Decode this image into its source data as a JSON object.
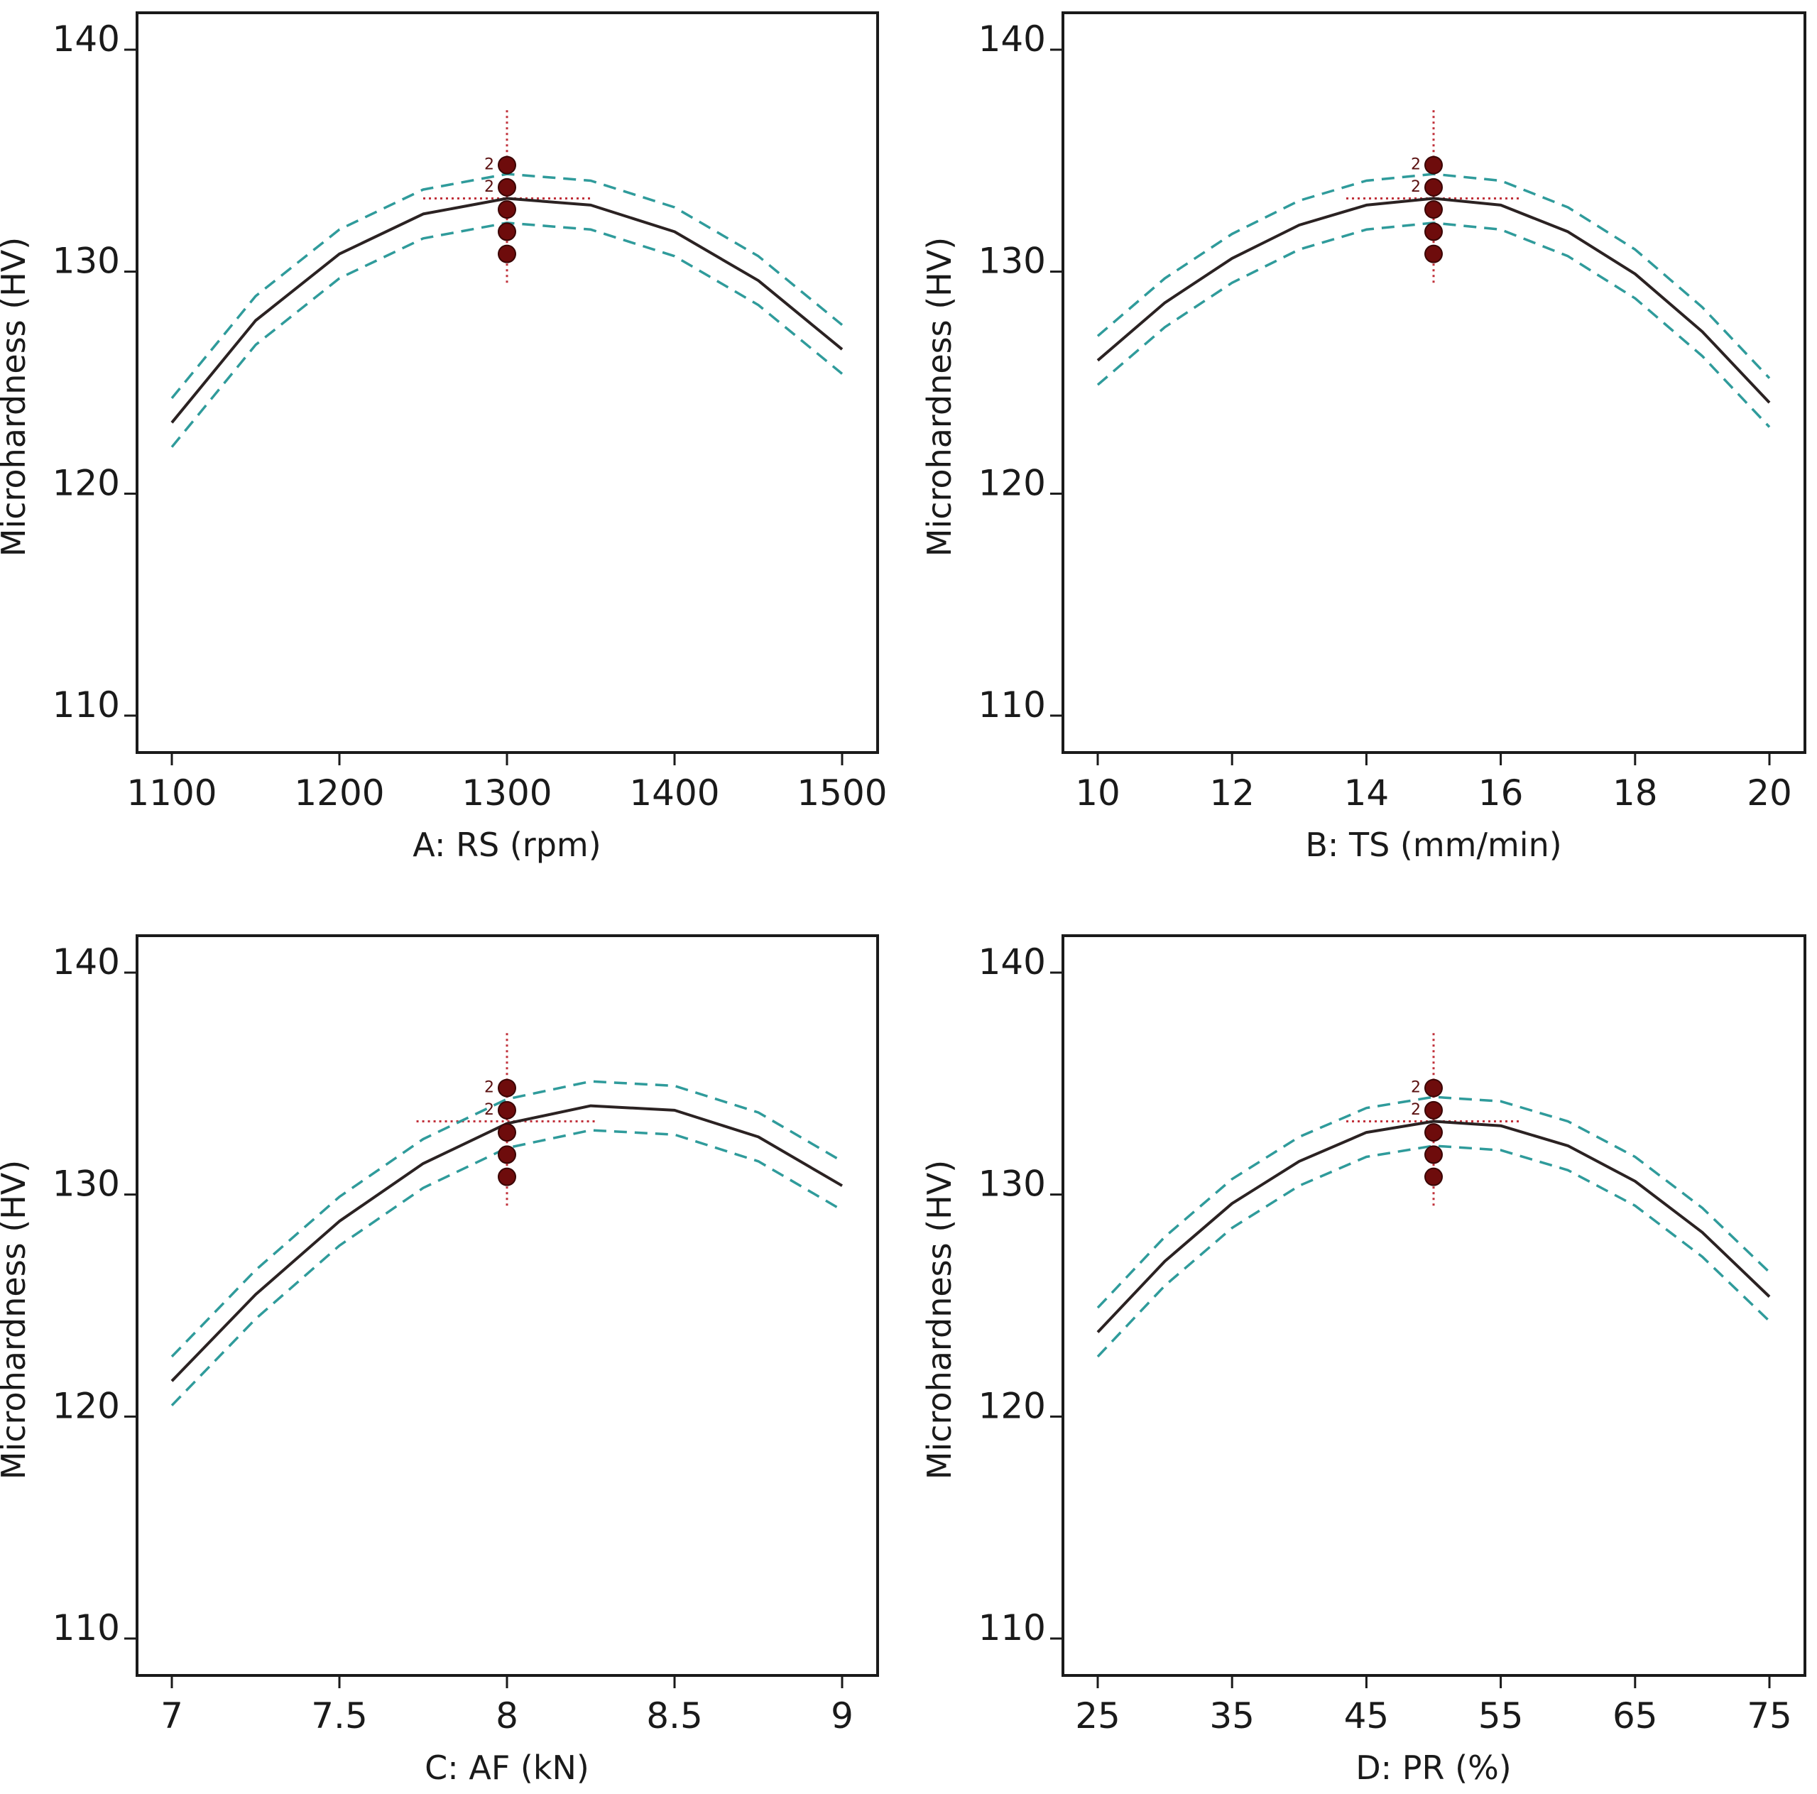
{
  "chart_data": [
    {
      "type": "line",
      "xlabel": "A: RS (rpm)",
      "ylabel": "Microhardness (HV)",
      "xlim": [
        1100,
        1500
      ],
      "ylim": [
        108,
        142
      ],
      "xticks": [
        1100,
        1200,
        1300,
        1400,
        1500
      ],
      "xtick_labels": [
        "1100",
        "1200",
        "1300",
        "1400",
        "1500"
      ],
      "yticks": [
        110,
        120,
        130,
        140
      ],
      "ytick_labels": [
        "110",
        "120",
        "130",
        "140"
      ],
      "series": [
        {
          "role": "prediction",
          "x": [
            1100,
            1150,
            1200,
            1250,
            1300,
            1350,
            1400,
            1450,
            1500
          ],
          "y": [
            123.2,
            127.8,
            130.8,
            132.6,
            133.3,
            133.0,
            131.8,
            129.6,
            126.5
          ]
        },
        {
          "role": "upper-band",
          "x": [
            1100,
            1150,
            1200,
            1250,
            1300,
            1350,
            1400,
            1450,
            1500
          ],
          "y": [
            124.3,
            128.9,
            131.9,
            133.7,
            134.4,
            134.1,
            132.9,
            130.7,
            127.6
          ]
        },
        {
          "role": "lower-band",
          "x": [
            1100,
            1150,
            1200,
            1250,
            1300,
            1350,
            1400,
            1450,
            1500
          ],
          "y": [
            122.1,
            126.7,
            129.7,
            131.5,
            132.2,
            131.9,
            130.7,
            128.5,
            125.4
          ]
        }
      ],
      "design_points": {
        "x": 1300,
        "y": [
          134.8,
          133.8,
          132.8,
          131.8,
          130.8
        ]
      },
      "replicate_labels": [
        {
          "y": 134.8,
          "text": "2"
        },
        {
          "y": 133.8,
          "text": "2"
        }
      ],
      "crosshair": {
        "x": 1300,
        "y": 133.3,
        "x_span": [
          1250,
          1350
        ],
        "y_span": [
          129.5,
          137.4
        ]
      }
    },
    {
      "type": "line",
      "xlabel": "B: TS (mm/min)",
      "ylabel": "Microhardness (HV)",
      "xlim": [
        10,
        20
      ],
      "ylim": [
        108,
        142
      ],
      "xticks": [
        10,
        12,
        14,
        16,
        18,
        20
      ],
      "xtick_labels": [
        "10",
        "12",
        "14",
        "16",
        "18",
        "20"
      ],
      "yticks": [
        110,
        120,
        130,
        140
      ],
      "ytick_labels": [
        "110",
        "120",
        "130",
        "140"
      ],
      "series": [
        {
          "role": "prediction",
          "x": [
            10,
            11,
            12,
            13,
            14,
            15,
            16,
            17,
            18,
            19,
            20
          ],
          "y": [
            126.0,
            128.6,
            130.6,
            132.1,
            133.0,
            133.3,
            133.0,
            131.8,
            129.9,
            127.3,
            124.1
          ]
        },
        {
          "role": "upper-band",
          "x": [
            10,
            11,
            12,
            13,
            14,
            15,
            16,
            17,
            18,
            19,
            20
          ],
          "y": [
            127.1,
            129.7,
            131.7,
            133.2,
            134.1,
            134.4,
            134.1,
            132.9,
            131.0,
            128.4,
            125.2
          ]
        },
        {
          "role": "lower-band",
          "x": [
            10,
            11,
            12,
            13,
            14,
            15,
            16,
            17,
            18,
            19,
            20
          ],
          "y": [
            124.9,
            127.5,
            129.5,
            131.0,
            131.9,
            132.2,
            131.9,
            130.7,
            128.8,
            126.2,
            123.0
          ]
        }
      ],
      "design_points": {
        "x": 15,
        "y": [
          134.8,
          133.8,
          132.8,
          131.8,
          130.8
        ]
      },
      "replicate_labels": [
        {
          "y": 134.8,
          "text": "2"
        },
        {
          "y": 133.8,
          "text": "2"
        }
      ],
      "crosshair": {
        "x": 15,
        "y": 133.3,
        "x_span": [
          13.7,
          16.3
        ],
        "y_span": [
          129.5,
          137.4
        ]
      }
    },
    {
      "type": "line",
      "xlabel": "C: AF (kN)",
      "ylabel": "Microhardness (HV)",
      "xlim": [
        7,
        9
      ],
      "ylim": [
        108,
        142
      ],
      "xticks": [
        7,
        7.5,
        8,
        8.5,
        9
      ],
      "xtick_labels": [
        "7",
        "7.5",
        "8",
        "8.5",
        "9"
      ],
      "yticks": [
        110,
        120,
        130,
        140
      ],
      "ytick_labels": [
        "110",
        "120",
        "130",
        "140"
      ],
      "series": [
        {
          "role": "prediction",
          "x": [
            7,
            7.25,
            7.5,
            7.75,
            8,
            8.25,
            8.5,
            8.75,
            9
          ],
          "y": [
            121.6,
            125.5,
            128.8,
            131.4,
            133.2,
            134.0,
            133.8,
            132.6,
            130.4
          ]
        },
        {
          "role": "upper-band",
          "x": [
            7,
            7.25,
            7.5,
            7.75,
            8,
            8.25,
            8.5,
            8.75,
            9
          ],
          "y": [
            122.7,
            126.6,
            129.9,
            132.5,
            134.3,
            135.1,
            134.9,
            133.7,
            131.5
          ]
        },
        {
          "role": "lower-band",
          "x": [
            7,
            7.25,
            7.5,
            7.75,
            8,
            8.25,
            8.5,
            8.75,
            9
          ],
          "y": [
            120.5,
            124.4,
            127.7,
            130.3,
            132.1,
            132.9,
            132.7,
            131.5,
            129.3
          ]
        }
      ],
      "design_points": {
        "x": 8,
        "y": [
          134.8,
          133.8,
          132.8,
          131.8,
          130.8
        ]
      },
      "replicate_labels": [
        {
          "y": 134.8,
          "text": "2"
        },
        {
          "y": 133.8,
          "text": "2"
        }
      ],
      "crosshair": {
        "x": 8,
        "y": 133.3,
        "x_span": [
          7.73,
          8.27
        ],
        "y_span": [
          129.5,
          137.4
        ]
      }
    },
    {
      "type": "line",
      "xlabel": "D: PR (%)",
      "ylabel": "Microhardness (HV)",
      "xlim": [
        25,
        75
      ],
      "ylim": [
        108,
        142
      ],
      "xticks": [
        25,
        35,
        45,
        55,
        65,
        75
      ],
      "xtick_labels": [
        "25",
        "35",
        "45",
        "55",
        "65",
        "75"
      ],
      "yticks": [
        110,
        120,
        130,
        140
      ],
      "ytick_labels": [
        "110",
        "120",
        "130",
        "140"
      ],
      "series": [
        {
          "role": "prediction",
          "x": [
            25,
            30,
            35,
            40,
            45,
            50,
            55,
            60,
            65,
            70,
            75
          ],
          "y": [
            123.8,
            127.0,
            129.6,
            131.5,
            132.8,
            133.3,
            133.1,
            132.2,
            130.6,
            128.3,
            125.4
          ]
        },
        {
          "role": "upper-band",
          "x": [
            25,
            30,
            35,
            40,
            45,
            50,
            55,
            60,
            65,
            70,
            75
          ],
          "y": [
            124.9,
            128.1,
            130.7,
            132.6,
            133.9,
            134.4,
            134.2,
            133.3,
            131.7,
            129.4,
            126.5
          ]
        },
        {
          "role": "lower-band",
          "x": [
            25,
            30,
            35,
            40,
            45,
            50,
            55,
            60,
            65,
            70,
            75
          ],
          "y": [
            122.7,
            125.9,
            128.5,
            130.4,
            131.7,
            132.2,
            132.0,
            131.1,
            129.5,
            127.2,
            124.3
          ]
        }
      ],
      "design_points": {
        "x": 50,
        "y": [
          134.8,
          133.8,
          132.8,
          131.8,
          130.8
        ]
      },
      "replicate_labels": [
        {
          "y": 134.8,
          "text": "2"
        },
        {
          "y": 133.8,
          "text": "2"
        }
      ],
      "crosshair": {
        "x": 50,
        "y": 133.3,
        "x_span": [
          43.5,
          56.5
        ],
        "y_span": [
          129.5,
          137.4
        ]
      }
    }
  ],
  "colors": {
    "prediction": "#2b2222",
    "band": "#2f9b9b",
    "crosshair": "#c0303a",
    "point": "#6e0c0c",
    "frame": "#1a1a1a"
  }
}
